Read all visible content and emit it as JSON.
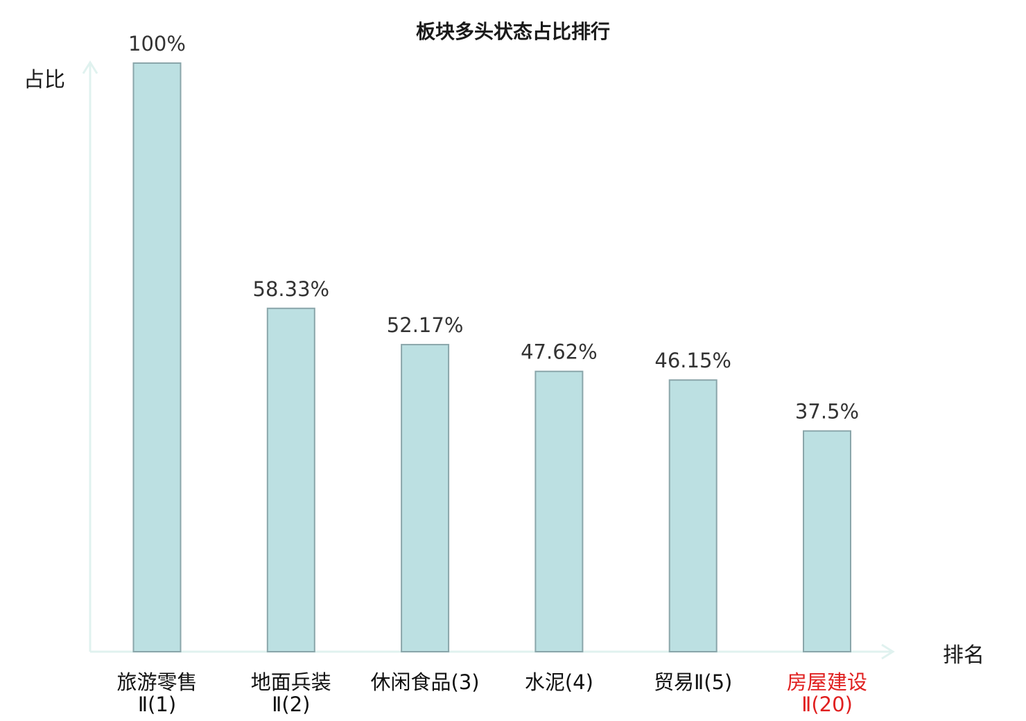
{
  "chart_data": {
    "type": "bar",
    "title": "板块多头状态占比排行",
    "xlabel": "排名",
    "ylabel": "占比",
    "ylim": [
      0,
      100
    ],
    "categories": [
      {
        "line1": "旅游零售",
        "line2": "Ⅱ(1)",
        "highlight": false
      },
      {
        "line1": "地面兵装",
        "line2": "Ⅱ(2)",
        "highlight": false
      },
      {
        "line1": "休闲食品(3)",
        "line2": "",
        "highlight": false
      },
      {
        "line1": "水泥(4)",
        "line2": "",
        "highlight": false
      },
      {
        "line1": "贸易Ⅱ(5)",
        "line2": "",
        "highlight": false
      },
      {
        "line1": "房屋建设",
        "line2": "Ⅱ(20)",
        "highlight": true
      }
    ],
    "values": [
      100,
      58.33,
      52.17,
      47.62,
      46.15,
      37.5
    ],
    "value_labels": [
      "100%",
      "58.33%",
      "52.17%",
      "47.62%",
      "46.15%",
      "37.5%"
    ],
    "grid": false,
    "legend": "none"
  },
  "colors": {
    "bar_fill": "#bce0e2",
    "bar_stroke": "#8aa6aa",
    "axis": "#e0f2ef",
    "label_text": "#333333",
    "category_text": "#111111",
    "highlight_text": "#e02020"
  }
}
